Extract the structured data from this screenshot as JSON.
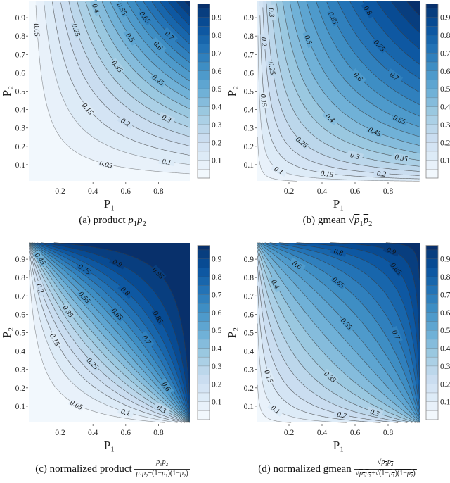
{
  "colors": {
    "colormap": [
      "#f7fbff",
      "#deebf7",
      "#c6dbef",
      "#9ecae1",
      "#6baed6",
      "#4292c6",
      "#2171b5",
      "#08519c",
      "#08306b"
    ],
    "contour_line": "#3a3a3a"
  },
  "chart_data": [
    {
      "type": "contour",
      "id": "a",
      "function": "p1*p2",
      "xlabel": "P₁",
      "ylabel": "P₂",
      "xlim": [
        0,
        1
      ],
      "ylim": [
        0,
        1
      ],
      "xticks": [
        "0.2",
        "0.4",
        "0.6",
        "0.8"
      ],
      "yticks": [
        "0.1",
        "0.2",
        "0.3",
        "0.4",
        "0.5",
        "0.6",
        "0.7",
        "0.8",
        "0.9"
      ],
      "contour_levels_step": 0.05,
      "contour_labels": [
        "0.05",
        "0.05",
        "0.1",
        "0.15",
        "0.2",
        "0.25",
        "0.3",
        "0.35",
        "0.4",
        "0.45",
        "0.5",
        "0.55",
        "0.6",
        "0.65",
        "0.7"
      ],
      "colorbar": {
        "range": [
          0,
          0.975
        ],
        "ticks": [
          "0.1",
          "0.2",
          "0.3",
          "0.4",
          "0.5",
          "0.6",
          "0.7",
          "0.8",
          "0.9"
        ]
      },
      "caption": {
        "prefix": "(a) product",
        "math": "p1p2"
      }
    },
    {
      "type": "contour",
      "id": "b",
      "function": "sqrt(p1*p2)",
      "xlabel": "P₁",
      "ylabel": "P₂",
      "xlim": [
        0,
        1
      ],
      "ylim": [
        0,
        1
      ],
      "xticks": [
        "0.2",
        "0.4",
        "0.6",
        "0.8"
      ],
      "yticks": [
        "0.1",
        "0.2",
        "0.3",
        "0.4",
        "0.5",
        "0.6",
        "0.7",
        "0.8",
        "0.9"
      ],
      "contour_levels_step": 0.05,
      "contour_labels": [
        "0.1",
        "0.15",
        "0.2",
        "0.25",
        "0.3",
        "0.35",
        "0.4",
        "0.45",
        "0.55",
        "0.5",
        "0.6",
        "0.65",
        "0.7",
        "0.75",
        "0.8",
        "0.3",
        "0.2",
        "0.25",
        "0.15"
      ],
      "colorbar": {
        "range": [
          0,
          0.975
        ],
        "ticks": [
          "0.1",
          "0.2",
          "0.3",
          "0.4",
          "0.5",
          "0.6",
          "0.7",
          "0.8",
          "0.9"
        ]
      },
      "caption": {
        "prefix": "(b) gmean",
        "math": "√p1p2"
      }
    },
    {
      "type": "contour",
      "id": "c",
      "function": "p1*p2/(p1*p2+(1-p1)*(1-p2))",
      "xlabel": "P₁",
      "ylabel": "P₂",
      "xlim": [
        0,
        1
      ],
      "ylim": [
        0,
        1
      ],
      "xticks": [
        "0.2",
        "0.4",
        "0.6",
        "0.8"
      ],
      "yticks": [
        "0.1",
        "0.2",
        "0.3",
        "0.4",
        "0.5",
        "0.6",
        "0.7",
        "0.8",
        "0.9"
      ],
      "contour_levels_step": 0.05,
      "contour_labels": [
        "0.05",
        "0.1",
        "0.15",
        "0.2",
        "0.25",
        "0.3",
        "0.35",
        "0.45",
        "0.55",
        "0.6",
        "0.65",
        "0.7",
        "0.75",
        "0.8",
        "0.85",
        "0.9",
        "0.95"
      ],
      "colorbar": {
        "range": [
          0,
          0.975
        ],
        "ticks": [
          "0.1",
          "0.2",
          "0.3",
          "0.4",
          "0.5",
          "0.6",
          "0.7",
          "0.8",
          "0.9"
        ]
      },
      "caption": {
        "prefix": "(c) normalized product",
        "num": "p1p2",
        "den": "p1p2+(1−p1)(1−p2)"
      }
    },
    {
      "type": "contour",
      "id": "d",
      "function": "sqrt(p1*p2)/(sqrt(p1*p2)+sqrt((1-p1)*(1-p2)))",
      "xlabel": "P₁",
      "ylabel": "P₂",
      "xlim": [
        0,
        1
      ],
      "ylim": [
        0,
        1
      ],
      "xticks": [
        "0.2",
        "0.4",
        "0.6",
        "0.8"
      ],
      "yticks": [
        "0.1",
        "0.2",
        "0.3",
        "0.4",
        "0.5",
        "0.6",
        "0.7",
        "0.8",
        "0.9"
      ],
      "contour_levels_step": 0.05,
      "contour_labels": [
        "0.1",
        "0.15",
        "0.2",
        "0.3",
        "0.35",
        "0.4",
        "0.55",
        "0.6",
        "0.65",
        "0.7",
        "0.8",
        "0.85",
        "0.9"
      ],
      "colorbar": {
        "range": [
          0,
          0.975
        ],
        "ticks": [
          "0.1",
          "0.2",
          "0.3",
          "0.4",
          "0.5",
          "0.6",
          "0.7",
          "0.8",
          "0.9"
        ]
      },
      "caption": {
        "prefix": "(d) normalized gmean",
        "num": "√p1p2",
        "den": "√p1p2+√(1−p1)(1−p2)"
      }
    }
  ]
}
